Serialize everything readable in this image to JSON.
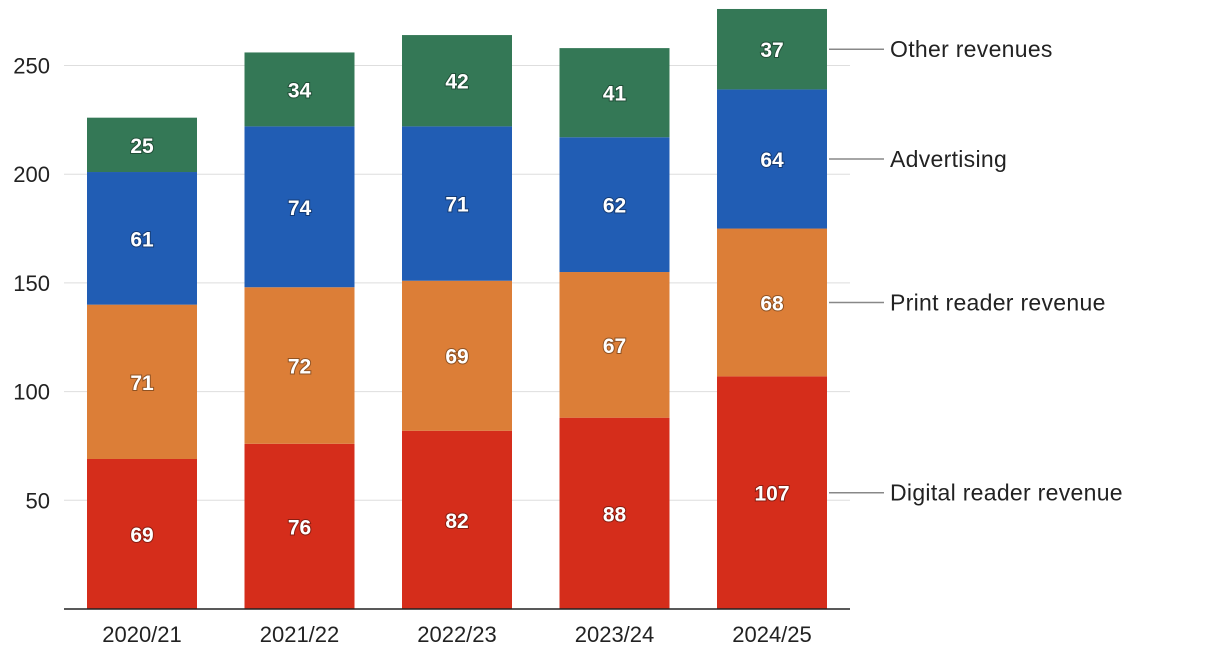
{
  "chart_data": {
    "type": "bar",
    "stacked": true,
    "title": "",
    "xlabel": "",
    "ylabel": "",
    "ylim": [
      0,
      275
    ],
    "yticks": [
      50,
      100,
      150,
      200,
      250
    ],
    "grid": true,
    "categories": [
      "2020/21",
      "2021/22",
      "2022/23",
      "2023/24",
      "2024/25"
    ],
    "series": [
      {
        "name": "Digital reader revenue",
        "color": "#d52d1b",
        "values": [
          69,
          76,
          82,
          88,
          107
        ]
      },
      {
        "name": "Print reader revenue",
        "color": "#dc7e37",
        "values": [
          71,
          72,
          69,
          67,
          68
        ]
      },
      {
        "name": "Advertising",
        "color": "#215db4",
        "values": [
          61,
          74,
          71,
          62,
          64
        ]
      },
      {
        "name": "Other revenues",
        "color": "#347856",
        "values": [
          25,
          34,
          42,
          41,
          37
        ]
      }
    ],
    "legend_placement": "right, aligned to final bar segments"
  }
}
